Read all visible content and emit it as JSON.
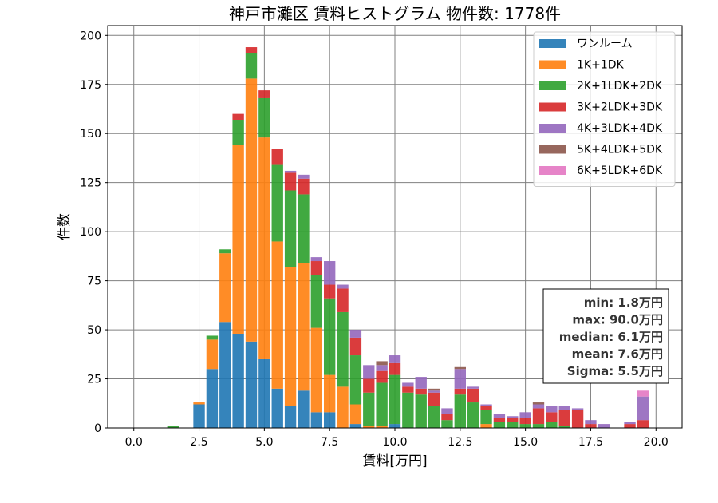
{
  "chart_data": {
    "type": "bar",
    "title": "神戸市灘区 賃料ヒストグラム 物件数: 1778件",
    "xlabel": "賃料[万円]",
    "ylabel": "件数",
    "xlim": [
      -1.0,
      21.0
    ],
    "ylim": [
      0,
      205
    ],
    "x_ticks": [
      0.0,
      2.5,
      5.0,
      7.5,
      10.0,
      12.5,
      15.0,
      17.5,
      20.0
    ],
    "y_ticks": [
      0,
      25,
      50,
      75,
      100,
      125,
      150,
      175,
      200
    ],
    "x_tick_labels": [
      "0.0",
      "2.5",
      "5.0",
      "7.5",
      "10.0",
      "12.5",
      "15.0",
      "17.5",
      "20.0"
    ],
    "y_tick_labels": [
      "0",
      "25",
      "50",
      "75",
      "100",
      "125",
      "150",
      "175",
      "200"
    ],
    "grid": true,
    "stacked": true,
    "legend_position": "top-right",
    "bin_width": 0.5,
    "bins": [
      1.5,
      2.5,
      3.0,
      3.5,
      4.0,
      4.5,
      5.0,
      5.5,
      6.0,
      6.5,
      7.0,
      7.5,
      8.0,
      8.5,
      9.0,
      9.5,
      10.0,
      10.5,
      11.0,
      11.5,
      12.0,
      12.5,
      13.0,
      13.5,
      14.0,
      14.5,
      15.0,
      15.5,
      16.0,
      16.5,
      17.0,
      17.5,
      18.0,
      19.0,
      19.5
    ],
    "series": [
      {
        "name": "ワンルーム",
        "color": "#1f77b4",
        "values": [
          0,
          12,
          30,
          54,
          48,
          44,
          35,
          20,
          11,
          19,
          8,
          8,
          0,
          2,
          0,
          0,
          2,
          0,
          0,
          0,
          0,
          0,
          0,
          0,
          0,
          0,
          0,
          0,
          0,
          0,
          0,
          0,
          0,
          0,
          0
        ]
      },
      {
        "name": "1K+1DK",
        "color": "#ff7f0e",
        "values": [
          0,
          1,
          15,
          35,
          96,
          134,
          113,
          75,
          71,
          65,
          43,
          19,
          21,
          10,
          1,
          1,
          0,
          0,
          0,
          0,
          0,
          0,
          0,
          2,
          0,
          0,
          0,
          0,
          0,
          0,
          0,
          0,
          0,
          0,
          0
        ]
      },
      {
        "name": "2K+1LDK+2DK",
        "color": "#2ca02c",
        "values": [
          1,
          0,
          2,
          2,
          13,
          13,
          20,
          39,
          39,
          35,
          27,
          39,
          38,
          25,
          17,
          22,
          25,
          18,
          17,
          11,
          4,
          17,
          13,
          7,
          3,
          3,
          2,
          2,
          3,
          1,
          0,
          0,
          0,
          0,
          0
        ]
      },
      {
        "name": "3K+2LDK+3DK",
        "color": "#d62728",
        "values": [
          0,
          0,
          0,
          0,
          3,
          3,
          4,
          8,
          9,
          8,
          7,
          7,
          12,
          9,
          7,
          6,
          6,
          3,
          3,
          7,
          3,
          3,
          7,
          2,
          2,
          2,
          3,
          8,
          5,
          8,
          9,
          2,
          0,
          2,
          4
        ]
      },
      {
        "name": "4K+3LDK+4DK",
        "color": "#9467bd",
        "values": [
          0,
          0,
          0,
          0,
          0,
          0,
          0,
          0,
          1,
          2,
          2,
          12,
          2,
          4,
          7,
          3,
          4,
          2,
          6,
          1,
          3,
          10,
          1,
          1,
          2,
          1,
          3,
          2,
          3,
          2,
          1,
          2,
          2,
          1,
          12
        ]
      },
      {
        "name": "5K+4LDK+5DK",
        "color": "#8c564b",
        "values": [
          0,
          0,
          0,
          0,
          0,
          0,
          0,
          0,
          0,
          0,
          0,
          0,
          0,
          0,
          0,
          2,
          0,
          0,
          0,
          1,
          0,
          1,
          0,
          0,
          0,
          0,
          0,
          1,
          0,
          0,
          0,
          0,
          0,
          0,
          0
        ]
      },
      {
        "name": "6K+5LDK+6DK",
        "color": "#e377c2",
        "values": [
          0,
          0,
          0,
          0,
          0,
          0,
          0,
          0,
          0,
          0,
          0,
          0,
          0,
          0,
          0,
          0,
          0,
          0,
          0,
          0,
          0,
          0,
          0,
          0,
          0,
          0,
          0,
          0,
          0,
          0,
          0,
          0,
          0,
          0,
          3
        ]
      }
    ],
    "stats_box": {
      "lines": [
        "min: 1.8万円",
        "max: 90.0万円",
        "median: 6.1万円",
        "mean: 7.6万円",
        "Sigma: 5.5万円"
      ],
      "position": "right-middle"
    }
  }
}
